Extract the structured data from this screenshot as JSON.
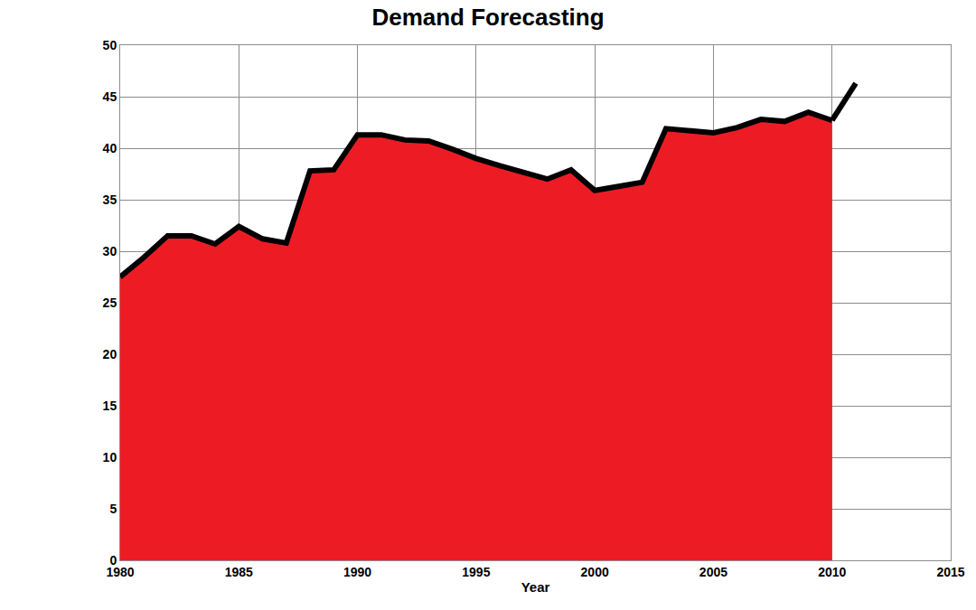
{
  "chart_data": {
    "type": "area",
    "title": "Demand Forecasting",
    "x_label": "Year",
    "x": [
      1980,
      1981,
      1982,
      1983,
      1984,
      1985,
      1986,
      1987,
      1988,
      1989,
      1990,
      1991,
      1992,
      1993,
      1994,
      1995,
      1996,
      1997,
      1998,
      1999,
      2000,
      2001,
      2002,
      2003,
      2004,
      2005,
      2006,
      2007,
      2008,
      2009,
      2010,
      2011
    ],
    "series": [
      {
        "type": "area",
        "color": "#ed1c24",
        "values": [
          27.5,
          29.4,
          31.5,
          31.5,
          30.7,
          32.4,
          31.2,
          30.8,
          37.8,
          37.9,
          41.3,
          41.3,
          40.8,
          40.7,
          39.9,
          39.0,
          38.3,
          37.7,
          37.0,
          37.9,
          35.9,
          36.3,
          36.7,
          41.9,
          41.7,
          41.5,
          42.0,
          42.8,
          42.6,
          43.5,
          42.7,
          null
        ]
      },
      {
        "type": "line",
        "color": "#000000",
        "values": [
          null,
          null,
          null,
          null,
          null,
          null,
          null,
          null,
          null,
          null,
          null,
          null,
          null,
          null,
          null,
          null,
          null,
          null,
          null,
          null,
          null,
          null,
          null,
          null,
          null,
          null,
          null,
          null,
          null,
          null,
          42.7,
          46.3
        ]
      }
    ],
    "xlim": [
      1980,
      2015
    ],
    "xticks": [
      1980,
      1985,
      1990,
      1995,
      2000,
      2005,
      2010,
      2015
    ],
    "ylim": [
      0,
      50
    ],
    "yticks": [
      0,
      5,
      10,
      15,
      20,
      25,
      30,
      35,
      40,
      45,
      50
    ],
    "grid": true
  }
}
